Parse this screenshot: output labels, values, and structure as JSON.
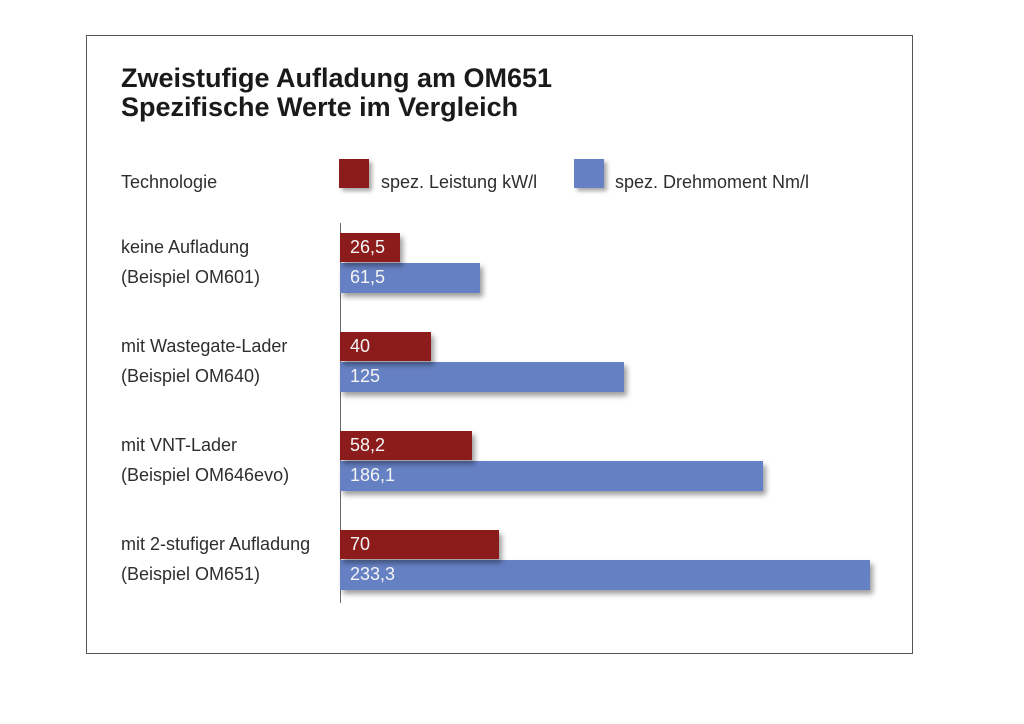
{
  "chart_data": {
    "type": "bar",
    "orientation": "horizontal",
    "title": "Zweistufige Aufladung am OM651",
    "subtitle": "Spezifische Werte im Vergleich",
    "category_header": "Technologie",
    "categories": [
      [
        "keine Aufladung",
        "(Beispiel OM601)"
      ],
      [
        "mit Wastegate-Lader",
        "(Beispiel OM640)"
      ],
      [
        "mit VNT-Lader",
        "(Beispiel OM646evo)"
      ],
      [
        "mit 2-stufiger Aufladung",
        "(Beispiel OM651)"
      ]
    ],
    "series": [
      {
        "name": "spez. Leistung kW/l",
        "color": "#8c1c1c",
        "values": [
          26.5,
          40,
          58.2,
          70
        ],
        "labels": [
          "26,5",
          "40",
          "58,2",
          "70"
        ]
      },
      {
        "name": "spez. Drehmoment Nm/l",
        "color": "#6680c4",
        "values": [
          61.5,
          125,
          186.1,
          233.3
        ],
        "labels": [
          "61,5",
          "125",
          "186,1",
          "233,3"
        ]
      }
    ],
    "xlim": [
      0,
      240
    ],
    "xlabel": "",
    "ylabel": "",
    "grid": false,
    "legend_position": "top"
  }
}
